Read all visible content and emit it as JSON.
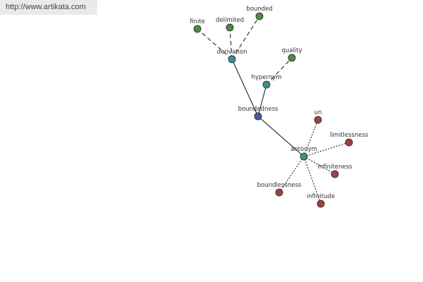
{
  "header": {
    "url": "http://www.artikata.com"
  },
  "nodes": [
    {
      "label": "boundedness"
    },
    {
      "label": "derivation"
    },
    {
      "label": "hypernym"
    },
    {
      "label": "antonym"
    },
    {
      "label": "finite"
    },
    {
      "label": "delimited"
    },
    {
      "label": "bounded"
    },
    {
      "label": "quality"
    },
    {
      "label": "un"
    },
    {
      "label": "limitlessness"
    },
    {
      "label": "infiniteness"
    },
    {
      "label": "boundlessness"
    },
    {
      "label": "infinitude"
    }
  ]
}
